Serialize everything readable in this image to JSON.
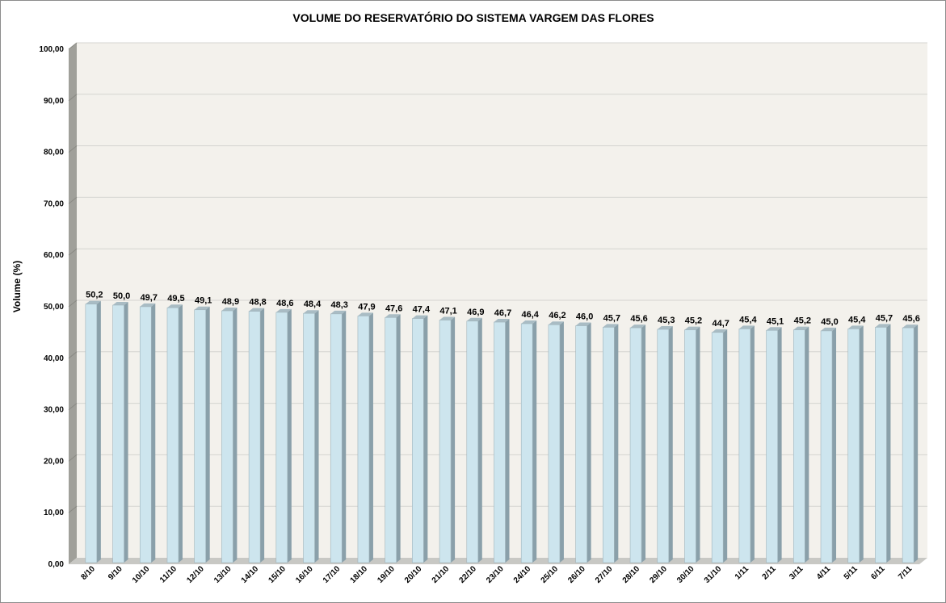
{
  "chart_data": {
    "type": "bar",
    "title": "VOLUME DO RESERVATÓRIO DO SISTEMA VARGEM DAS FLORES",
    "xlabel": "",
    "ylabel": "Volume (%)",
    "ylim": [
      0,
      100
    ],
    "yticks": [
      "0,00",
      "10,00",
      "20,00",
      "30,00",
      "40,00",
      "50,00",
      "60,00",
      "70,00",
      "80,00",
      "90,00",
      "100,00"
    ],
    "grid": true,
    "legend": "none",
    "categories": [
      "8/10",
      "9/10",
      "10/10",
      "11/10",
      "12/10",
      "13/10",
      "14/10",
      "15/10",
      "16/10",
      "17/10",
      "18/10",
      "19/10",
      "20/10",
      "21/10",
      "22/10",
      "23/10",
      "24/10",
      "25/10",
      "26/10",
      "27/10",
      "28/10",
      "29/10",
      "30/10",
      "31/10",
      "1/11",
      "2/11",
      "3/11",
      "4/11",
      "5/11",
      "6/11",
      "7/11"
    ],
    "values": [
      50.2,
      50.0,
      49.7,
      49.5,
      49.1,
      48.9,
      48.8,
      48.6,
      48.4,
      48.3,
      47.9,
      47.6,
      47.4,
      47.1,
      46.9,
      46.7,
      46.4,
      46.2,
      46.0,
      45.7,
      45.6,
      45.3,
      45.2,
      44.7,
      45.4,
      45.1,
      45.2,
      45.0,
      45.4,
      45.7,
      45.6
    ],
    "data_labels": [
      "50,2",
      "50,0",
      "49,7",
      "49,5",
      "49,1",
      "48,9",
      "48,8",
      "48,6",
      "48,4",
      "48,3",
      "47,9",
      "47,6",
      "47,4",
      "47,1",
      "46,9",
      "46,7",
      "46,4",
      "46,2",
      "46,0",
      "45,7",
      "45,6",
      "45,3",
      "45,2",
      "44,7",
      "45,4",
      "45,1",
      "45,2",
      "45,0",
      "45,4",
      "45,7",
      "45,6"
    ]
  },
  "colors": {
    "bar_front": "#cde5ee",
    "bar_side": "#8aa0aa",
    "bar_top": "#a9bcc4",
    "bar_edge": "#9fb3bb",
    "plot_bg": "#f3f1ec",
    "left_wall": "#a0a09a",
    "floor": "#c8c8c4",
    "grid": "#d4d4d0"
  }
}
